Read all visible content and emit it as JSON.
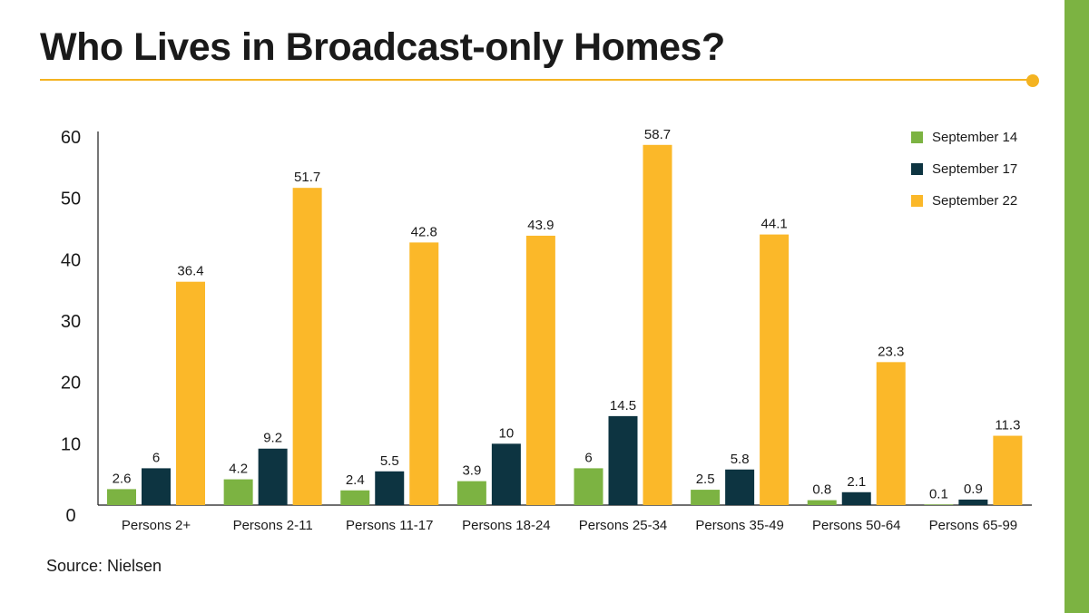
{
  "title": "Who Lives in Broadcast-only Homes?",
  "source": "Source: Nielsen",
  "colors": {
    "accent": "#F4B321",
    "strip": "#7CB342",
    "axis": "#1a1a1a"
  },
  "chart_data": {
    "type": "bar",
    "title": "Who Lives in Broadcast-only Homes?",
    "xlabel": "",
    "ylabel": "",
    "ylim": [
      0,
      60
    ],
    "yticks": [
      0,
      10,
      20,
      30,
      40,
      50,
      60
    ],
    "grid": false,
    "legend_position": "top-right",
    "categories": [
      "Persons 2+",
      "Persons 2-11",
      "Persons 11-17",
      "Persons 18-24",
      "Persons 25-34",
      "Persons 35-49",
      "Persons 50-64",
      "Persons 65-99"
    ],
    "series": [
      {
        "name": "September 14",
        "color": "#7CB342",
        "values": [
          2.6,
          4.2,
          2.4,
          3.9,
          6,
          2.5,
          0.8,
          0.1
        ]
      },
      {
        "name": "September 17",
        "color": "#0D3441",
        "values": [
          6,
          9.2,
          5.5,
          10,
          14.5,
          5.8,
          2.1,
          0.9
        ]
      },
      {
        "name": "September 22",
        "color": "#FBB829",
        "values": [
          36.4,
          51.7,
          42.8,
          43.9,
          58.7,
          44.1,
          23.3,
          11.3
        ]
      }
    ]
  }
}
